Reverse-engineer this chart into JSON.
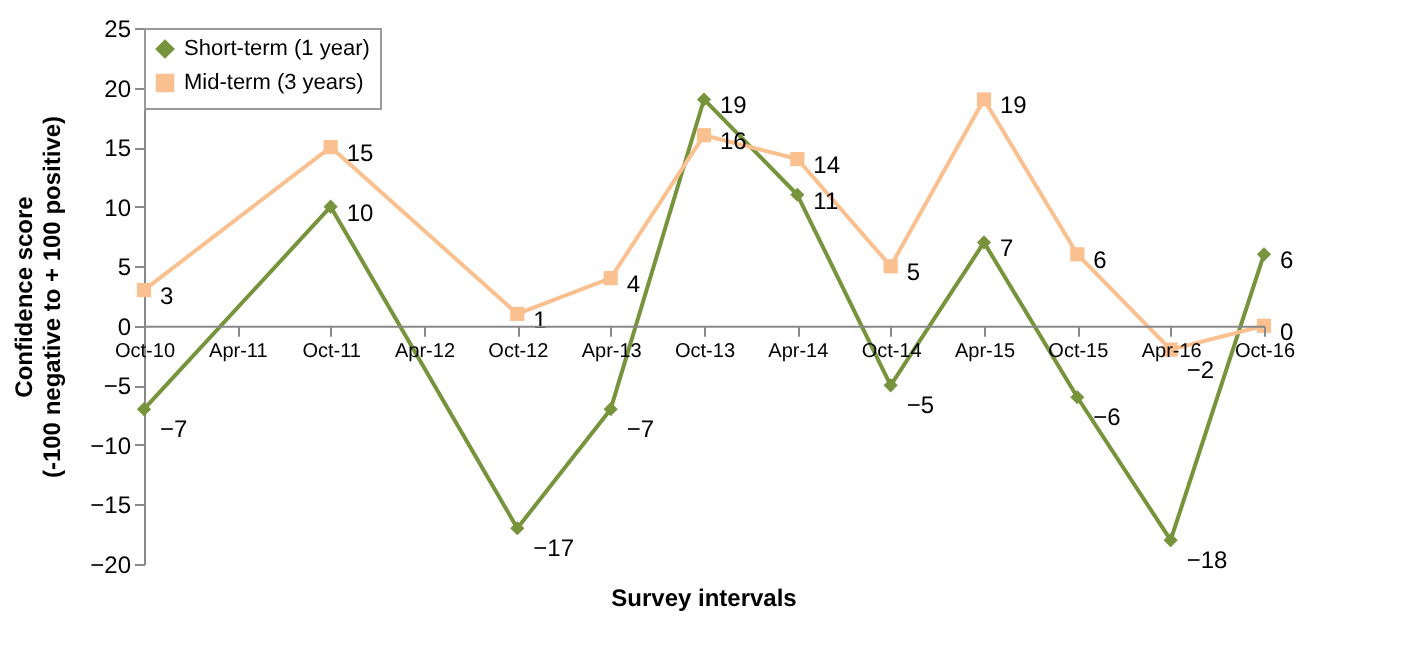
{
  "chart_data": {
    "type": "line",
    "xlabel": "Survey intervals",
    "ylabel": "Confidence score\n(-100 negative to + 100 positive)",
    "categories": [
      "Oct-10",
      "Apr-11",
      "Oct-11",
      "Apr-12",
      "Oct-12",
      "Apr-13",
      "Oct-13",
      "Apr-14",
      "Oct-14",
      "Apr-15",
      "Oct-15",
      "Apr-16",
      "Oct-16"
    ],
    "series": [
      {
        "name": "Short-term (1 year)",
        "color": "#77933c",
        "marker": "diamond",
        "values": [
          -7,
          null,
          10,
          null,
          -17,
          -7,
          19,
          11,
          -5,
          7,
          -6,
          -18,
          6
        ]
      },
      {
        "name": "Mid-term (3 years)",
        "color": "#fac090",
        "marker": "square",
        "values": [
          3,
          null,
          15,
          null,
          1,
          4,
          16,
          14,
          5,
          19,
          6,
          -2,
          0
        ]
      }
    ],
    "ylim": [
      -20,
      25
    ],
    "yticks": [
      -20,
      -15,
      -10,
      -5,
      0,
      5,
      10,
      15,
      20,
      25
    ],
    "grid": false,
    "legend": "top left",
    "data_labels": true,
    "line_style": "solid"
  }
}
